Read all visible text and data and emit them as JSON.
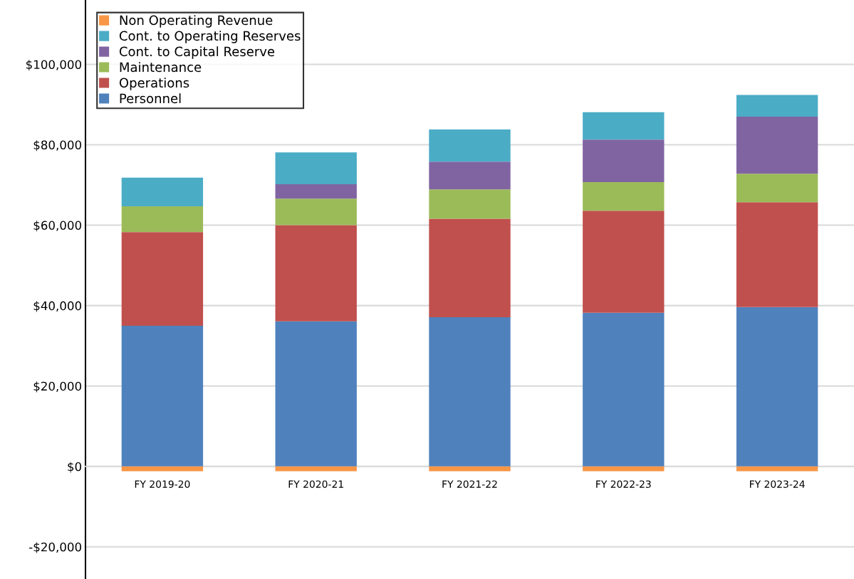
{
  "chart_data": {
    "type": "bar",
    "stacked": true,
    "categories": [
      "FY 2019-20",
      "FY 2020-21",
      "FY 2021-22",
      "FY 2022-23",
      "FY 2023-24"
    ],
    "series": [
      {
        "name": "Personnel",
        "color": "#4f81bd",
        "values": [
          35000,
          36100,
          37100,
          38200,
          39600
        ]
      },
      {
        "name": "Operations",
        "color": "#c0504d",
        "values": [
          23300,
          23900,
          24500,
          25400,
          26100
        ]
      },
      {
        "name": "Maintenance",
        "color": "#9bbb59",
        "values": [
          6400,
          6600,
          7300,
          7100,
          7100
        ]
      },
      {
        "name": "Cont. to Capital Reserve",
        "color": "#8064a2",
        "values": [
          0,
          3600,
          6900,
          10600,
          14200
        ]
      },
      {
        "name": "Cont. to Operating Reserves",
        "color": "#4bacc6",
        "values": [
          7100,
          7900,
          8000,
          6800,
          5400
        ]
      },
      {
        "name": "Non Operating Revenue",
        "color": "#f79646",
        "values": [
          -1200,
          -1200,
          -1200,
          -1200,
          -1200
        ]
      }
    ],
    "ylim": [
      -28000,
      116000
    ],
    "yticks": [
      {
        "value": -20000,
        "label": "-$20,000"
      },
      {
        "value": 0,
        "label": "$0"
      },
      {
        "value": 20000,
        "label": "$20,000"
      },
      {
        "value": 40000,
        "label": "$40,000"
      },
      {
        "value": 60000,
        "label": "$60,000"
      },
      {
        "value": 80000,
        "label": "$80,000"
      },
      {
        "value": 100000,
        "label": "$100,000"
      }
    ],
    "grid": "y",
    "legend": "top left"
  }
}
